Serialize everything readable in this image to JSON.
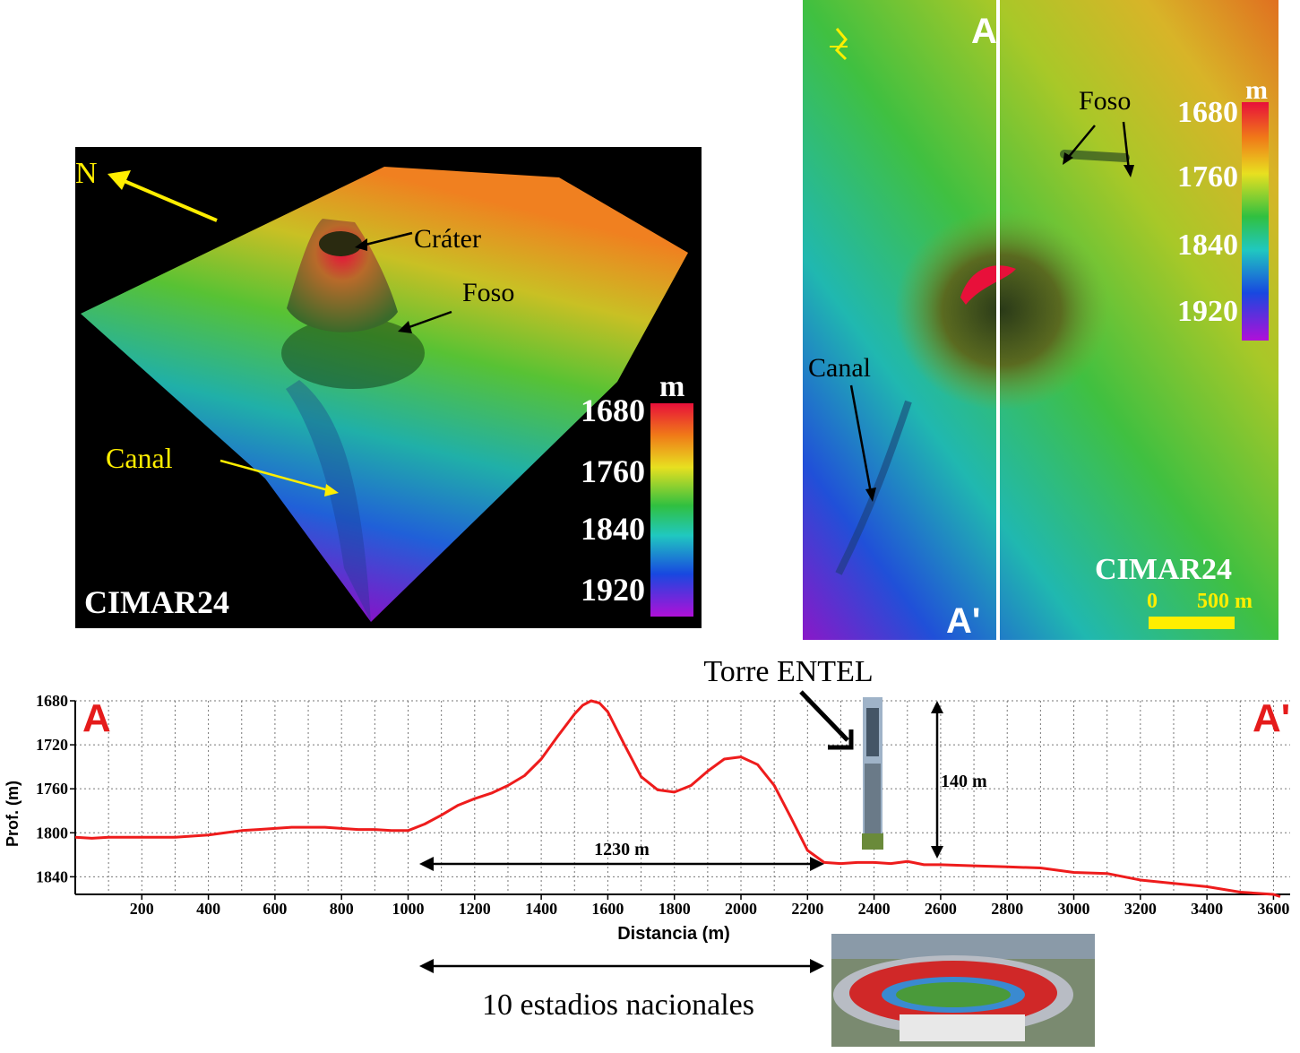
{
  "map3d": {
    "north_label": "N",
    "crater_label": "Cráter",
    "foso_label": "Foso",
    "canal_label": "Canal",
    "watermark": "CIMAR24",
    "colorbar_unit": "m",
    "colorbar_ticks": [
      "1680",
      "1760",
      "1840",
      "1920"
    ]
  },
  "mapplan": {
    "section_start": "A",
    "section_end": "A'",
    "foso_label": "Foso",
    "canal_label": "Canal",
    "watermark": "CIMAR24",
    "scale_start": "0",
    "scale_end": "500 m",
    "colorbar_unit": "m",
    "colorbar_ticks": [
      "1680",
      "1760",
      "1840",
      "1920"
    ]
  },
  "profile": {
    "start_label": "A",
    "end_label": "A'",
    "ylabel": "Prof. (m)",
    "xlabel": "Distancia (m)",
    "tower_label": "Torre ENTEL",
    "height_label": "140 m",
    "width_label": "1230 m",
    "stadium_label": "10 estadios nacionales",
    "chart_data": {
      "type": "line",
      "x": [
        0,
        50,
        100,
        150,
        200,
        250,
        300,
        350,
        400,
        450,
        500,
        550,
        600,
        650,
        700,
        750,
        800,
        850,
        900,
        950,
        1000,
        1050,
        1100,
        1150,
        1200,
        1250,
        1300,
        1350,
        1400,
        1450,
        1500,
        1525,
        1550,
        1575,
        1600,
        1650,
        1700,
        1750,
        1800,
        1850,
        1900,
        1950,
        2000,
        2050,
        2100,
        2150,
        2200,
        2250,
        2300,
        2350,
        2400,
        2450,
        2500,
        2550,
        2600,
        2700,
        2800,
        2900,
        3000,
        3100,
        3200,
        3300,
        3400,
        3500,
        3600,
        3620
      ],
      "y": [
        1804,
        1805,
        1804,
        1804,
        1804,
        1804,
        1804,
        1803,
        1802,
        1800,
        1798,
        1797,
        1796,
        1795,
        1795,
        1795,
        1796,
        1797,
        1797,
        1798,
        1798,
        1792,
        1784,
        1775,
        1769,
        1764,
        1757,
        1748,
        1733,
        1712,
        1692,
        1684,
        1680,
        1682,
        1690,
        1720,
        1749,
        1761,
        1763,
        1757,
        1744,
        1733,
        1731,
        1738,
        1757,
        1786,
        1816,
        1827,
        1828,
        1827,
        1827,
        1828,
        1826,
        1829,
        1829,
        1830,
        1831,
        1832,
        1836,
        1837,
        1843,
        1846,
        1849,
        1854,
        1856,
        1858
      ],
      "xlim": [
        0,
        3650
      ],
      "ylim": [
        1680,
        1856
      ],
      "reversed_y": true,
      "xticks": [
        200,
        400,
        600,
        800,
        1000,
        1200,
        1400,
        1600,
        1800,
        2000,
        2200,
        2400,
        2600,
        2800,
        3000,
        3200,
        3400,
        3600
      ],
      "yticks": [
        1680,
        1720,
        1760,
        1800,
        1840
      ],
      "grid": true,
      "line_color": "#ee1c1c"
    }
  },
  "colors": {
    "accent_red": "#e51b1b",
    "label_yellow": "#ffe000",
    "map_background": "#000000"
  }
}
